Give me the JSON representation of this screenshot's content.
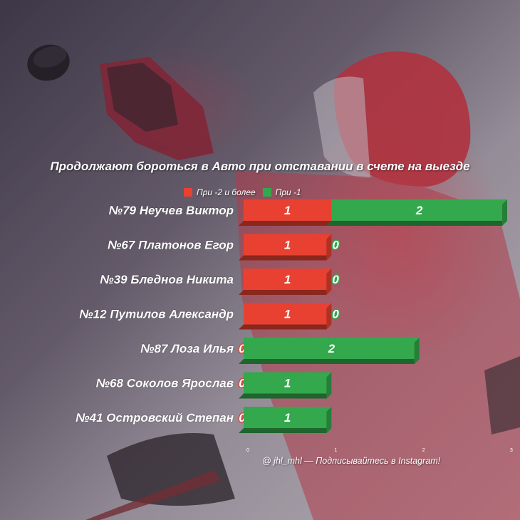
{
  "title": "Продолжают бороться в Авто при отставании в счете на выезде",
  "footer": "@ jhl_mhl — Подписывайтесь в Instagram!",
  "legend": [
    {
      "label": "При -2 и более",
      "color": "#e84131"
    },
    {
      "label": "При -1",
      "color": "#33a84c"
    }
  ],
  "chart_data": {
    "type": "bar",
    "orientation": "horizontal",
    "stacked": true,
    "categories": [
      "№79 Неучев Виктор",
      "№67 Платонов Егор",
      "№39 Бледнов Никита",
      "№12 Путилов Александр",
      "№87 Лоза Илья",
      "№68 Соколов Ярослав",
      "№41 Островский Степан"
    ],
    "series": [
      {
        "name": "При -2 и более",
        "color": "#e84131",
        "values": [
          1,
          1,
          1,
          1,
          0,
          0,
          0
        ]
      },
      {
        "name": "При -1",
        "color": "#33a84c",
        "values": [
          2,
          0,
          0,
          0,
          2,
          1,
          1
        ]
      }
    ],
    "xlim": [
      0,
      3
    ],
    "xticks": [
      "0",
      "1",
      "2",
      "3"
    ],
    "legend_position": "top"
  }
}
